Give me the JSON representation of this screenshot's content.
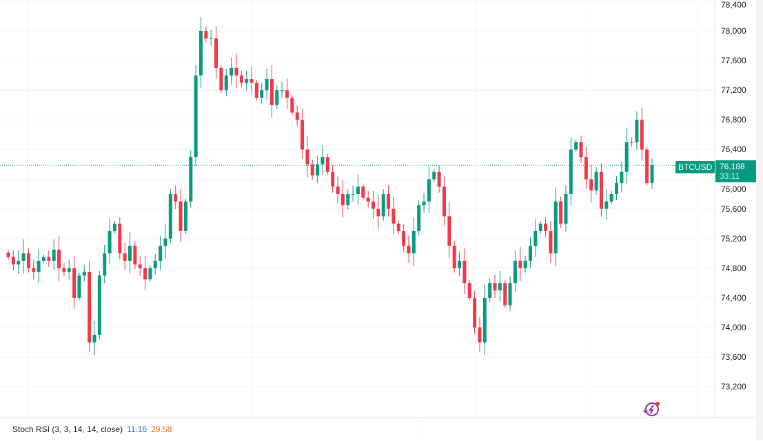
{
  "symbol": "BTCUSD",
  "last_price": "76,188",
  "countdown": "33:11",
  "colors": {
    "up": "#089981",
    "down": "#f23645",
    "k": "#2962ff",
    "d": "#ff6d00"
  },
  "indicator": {
    "label": "Stoch RSI (3, 3, 14, 14, close)",
    "k": "11.16",
    "d": "29.58"
  },
  "chart_data": {
    "type": "candlestick",
    "price_ticks": [
      "78,400",
      "78,000",
      "77,600",
      "77,200",
      "76,800",
      "76,400",
      "76,000",
      "75,600",
      "75,200",
      "74,800",
      "74,400",
      "74,000",
      "73,600",
      "73,200"
    ],
    "tick_values": [
      78400,
      78000,
      77600,
      77200,
      76800,
      76400,
      76000,
      75600,
      75200,
      74800,
      74400,
      74000,
      73600,
      73200
    ],
    "grid": true,
    "close": [
      74950,
      74850,
      74900,
      75000,
      74800,
      74750,
      74900,
      74950,
      74900,
      75050,
      74800,
      74750,
      74800,
      74400,
      74700,
      74750,
      73800,
      73900,
      74700,
      75000,
      75300,
      75400,
      75000,
      74900,
      75100,
      74850,
      74800,
      74650,
      74800,
      74900,
      75100,
      75200,
      75800,
      75700,
      75300,
      75700,
      76300,
      77400,
      78000,
      77900,
      77900,
      77500,
      77200,
      77400,
      77500,
      77400,
      77300,
      77350,
      77300,
      77100,
      77200,
      77350,
      77000,
      77200,
      77200,
      77100,
      76900,
      76800,
      76400,
      76200,
      76050,
      76200,
      76300,
      76100,
      75900,
      75800,
      75650,
      75800,
      75800,
      75900,
      75750,
      75700,
      75600,
      75500,
      75800,
      75600,
      75400,
      75300,
      75100,
      75000,
      75300,
      75650,
      75700,
      76000,
      76100,
      75900,
      75500,
      75100,
      74800,
      74900,
      74600,
      74400,
      74000,
      73800,
      74400,
      74600,
      74500,
      74600,
      74300,
      74600,
      74900,
      74800,
      74900,
      75100,
      75300,
      75400,
      75300,
      75000,
      75700,
      75400,
      75800,
      76400,
      76500,
      76300,
      76000,
      75850,
      76100,
      75600,
      75700,
      75800,
      75950,
      76100,
      76500,
      76500,
      76800,
      76400,
      75950,
      76188
    ]
  }
}
